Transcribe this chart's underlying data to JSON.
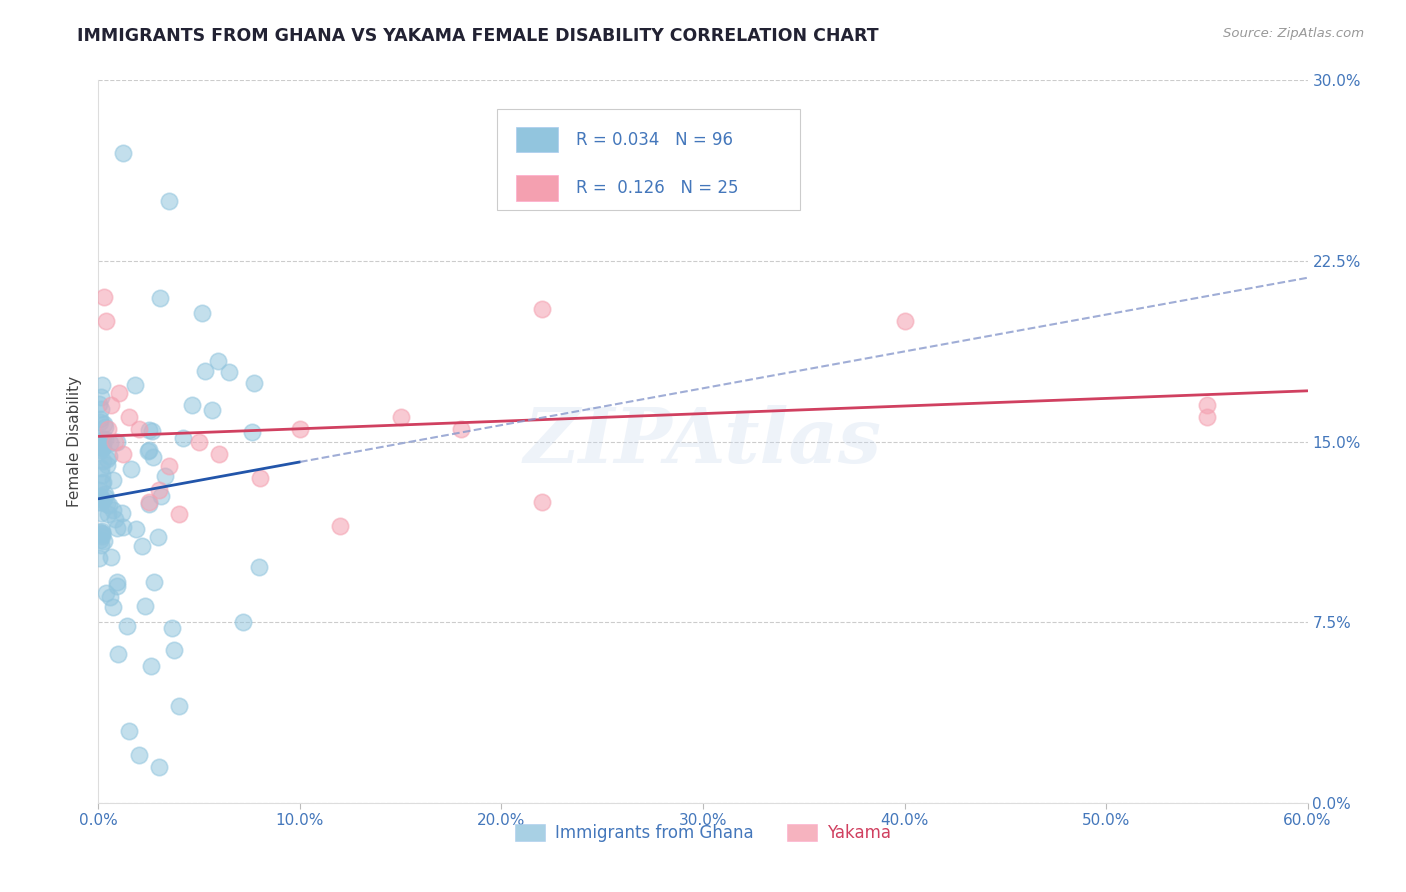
{
  "title": "IMMIGRANTS FROM GHANA VS YAKAMA FEMALE DISABILITY CORRELATION CHART",
  "source": "Source: ZipAtlas.com",
  "ylabel": "Female Disability",
  "blue_color": "#92C5DE",
  "pink_color": "#F4A0B0",
  "blue_line_color": "#2255AA",
  "pink_line_color": "#D04060",
  "dashed_line_color": "#8899CC",
  "axis_color": "#4477BB",
  "title_color": "#222233",
  "watermark": "ZIPAtlas",
  "legend_label1": "Immigrants from Ghana",
  "legend_label2": "Yakama",
  "xlim": [
    0,
    60
  ],
  "ylim": [
    0,
    30
  ],
  "xtick_vals": [
    0,
    10,
    20,
    30,
    40,
    50,
    60
  ],
  "ytick_vals": [
    0,
    7.5,
    15.0,
    22.5,
    30.0
  ]
}
